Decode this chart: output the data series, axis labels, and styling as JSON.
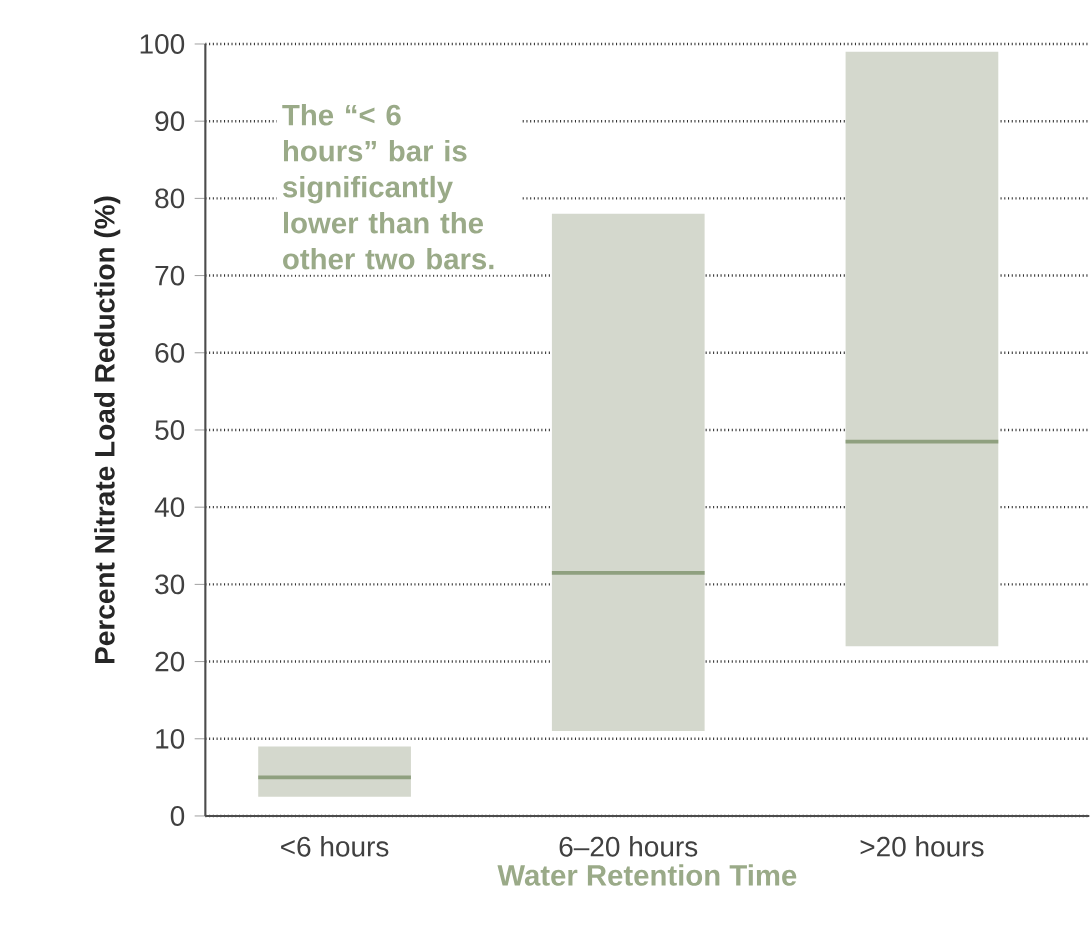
{
  "chart_data": {
    "type": "box",
    "xlabel": "Water Retention Time",
    "ylabel": "Percent Nitrate Load Reduction (%)",
    "categories": [
      "<6 hours",
      "6–20 hours",
      ">20 hours"
    ],
    "color": "#d4d8cd",
    "boxes": [
      {
        "low": 2.5,
        "q1": 2.5,
        "median": 5,
        "q3": 9,
        "high": 9
      },
      {
        "low": 11,
        "q1": 11,
        "median": 31.5,
        "q3": 78,
        "high": 78
      },
      {
        "low": 22,
        "q1": 22,
        "median": 48.5,
        "q3": 99,
        "high": 99
      }
    ],
    "ylim": [
      0,
      100
    ],
    "yticks": [
      0,
      10,
      20,
      30,
      40,
      50,
      60,
      70,
      80,
      90,
      100
    ],
    "grid": "y",
    "annotations": [
      "The “< 6 hours” bar is significantly lower than the other two bars."
    ]
  }
}
